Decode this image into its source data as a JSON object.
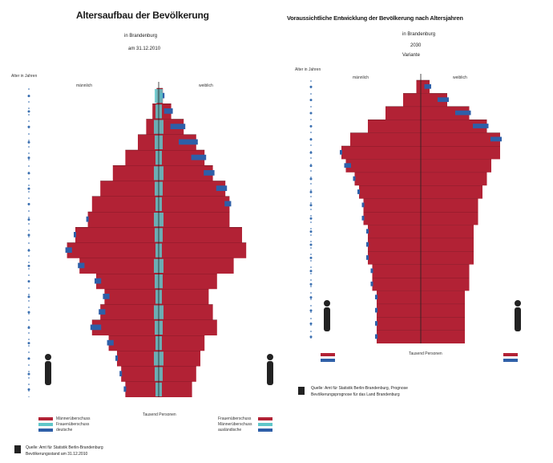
{
  "left": {
    "title": "Altersaufbau der Bevölkerung",
    "subtitle1": "in Brandenburg",
    "subtitle2": "am 31.12.2010",
    "yaxis_label": "Alter in Jahren",
    "label_male": "männlich",
    "label_female": "weiblich",
    "xaxis_label": "Tausend Personen",
    "legend_left": [
      "Männerüberschuss",
      "Frauenüberschuss",
      "deutsche"
    ],
    "legend_right": [
      "Frauenüberschuss",
      "Männerüberschuss",
      "ausländische"
    ],
    "footer1": "Quelle: Amt für Statistik Berlin-Brandenburg",
    "footer2": "Bevölkerungsstand am 31.12.2010"
  },
  "right": {
    "title": "Voraussichtliche Entwicklung der Bevölkerung nach Altersjahren",
    "subtitle1": "in Brandenburg",
    "subtitle2": "2030",
    "subtitle3": "Variante",
    "yaxis_label": "Alter in Jahren",
    "label_male": "männlich",
    "label_female": "weiblich",
    "xaxis_label": "Tausend Personen",
    "footer1": "Quelle: Amt für Statistik Berlin-Brandenburg, Prognose",
    "footer2": "Bevölkerungsprognose für das Land Brandenburg"
  },
  "colors": {
    "population": "#b22235",
    "surplus_blue": "#2e5fa8",
    "foreign_cyan": "#5fc6c9",
    "grid": "#1a1a1a"
  },
  "chart_data": [
    {
      "type": "bar",
      "note": "population pyramid, current",
      "y": [
        0,
        5,
        10,
        15,
        20,
        25,
        30,
        35,
        40,
        45,
        50,
        55,
        60,
        65,
        70,
        75,
        80,
        85,
        90,
        95
      ],
      "series": [
        {
          "name": "männlich",
          "values": [
            8,
            9,
            10,
            12,
            16,
            14,
            13,
            15,
            19,
            22,
            20,
            17,
            16,
            14,
            11,
            8,
            5,
            3,
            1.5,
            0.5
          ]
        },
        {
          "name": "weiblich",
          "values": [
            8,
            9,
            10,
            11,
            14,
            13,
            12,
            14,
            18,
            21,
            20,
            17,
            17,
            16,
            13,
            11,
            9,
            6,
            3,
            1
          ]
        }
      ],
      "ylim": [
        0,
        100
      ]
    },
    {
      "type": "bar",
      "note": "population pyramid, projection",
      "y": [
        0,
        5,
        10,
        15,
        20,
        25,
        30,
        35,
        40,
        45,
        50,
        55,
        60,
        65,
        70,
        75,
        80,
        85,
        90,
        95
      ],
      "series": [
        {
          "name": "männlich",
          "values": [
            10,
            10,
            10,
            10,
            11,
            11,
            12,
            12,
            12,
            13,
            13,
            14,
            15,
            17,
            18,
            16,
            12,
            8,
            4,
            1
          ]
        },
        {
          "name": "weiblich",
          "values": [
            10,
            10,
            10,
            10,
            11,
            11,
            12,
            12,
            12,
            13,
            13,
            14,
            15,
            16,
            18,
            18,
            15,
            11,
            6,
            2
          ]
        }
      ],
      "ylim": [
        0,
        100
      ]
    }
  ]
}
